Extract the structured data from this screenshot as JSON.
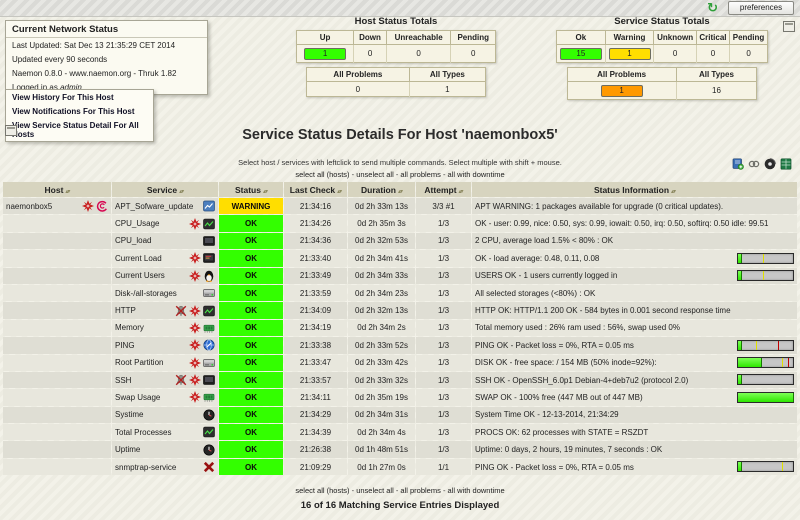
{
  "topbar": {
    "preferences_label": "preferences"
  },
  "info_panel": {
    "title": "Current Network Status",
    "last_updated": "Last Updated: Sat Dec 13 21:35:29 CET 2014",
    "update_interval": "Updated every 90 seconds",
    "product": "Naemon 0.8.0",
    "product_link": "www.naemon.org",
    "frontend": "Thruk 1.82",
    "logged_in_prefix": "Logged in as",
    "logged_in_user": "admin"
  },
  "nav_links": [
    "View History For This Host",
    "View Notifications For This Host",
    "View Service Status Detail For All Hosts"
  ],
  "host_totals": {
    "title": "Host Status Totals",
    "headers": [
      "Up",
      "Down",
      "Unreachable",
      "Pending"
    ],
    "values": [
      "1",
      "0",
      "0",
      "0"
    ],
    "summary_headers": [
      "All Problems",
      "All Types"
    ],
    "summary_values": [
      "0",
      "1"
    ]
  },
  "service_totals": {
    "title": "Service Status Totals",
    "headers": [
      "Ok",
      "Warning",
      "Unknown",
      "Critical",
      "Pending"
    ],
    "values": [
      "15",
      "1",
      "0",
      "0",
      "0"
    ],
    "summary_headers": [
      "All Problems",
      "All Types"
    ],
    "summary_values": [
      "1",
      "16"
    ]
  },
  "page": {
    "title": "Service Status Details For Host 'naemonbox5'",
    "hint": "Select host / services with leftclick to send multiple commands. Select multiple with shift + mouse.",
    "select_links": [
      "select all (hosts)",
      "unselect all",
      "all problems",
      "all with downtime"
    ],
    "footer_count": "16 of 16 Matching Service Entries Displayed"
  },
  "colors": {
    "ok": "#33ff00",
    "warning": "#ffde00",
    "problem_orange": "#ff9900",
    "debian": "#d70751",
    "starburst_red": "#c81e1e",
    "bar_green": "#2ee600"
  },
  "icon_glyphs": {
    "refresh": "circular-arrow",
    "sort": "up-down-triangles",
    "starburst": "red-burst-star",
    "debian": "pink-swirl",
    "bell-crossed": "muted-notification-bell",
    "graph": "blue-graph-doc",
    "terminal-green": "dark-terminal-green-plot",
    "screen-dark": "dark-monitor",
    "screen-red": "dark-monitor-red-text",
    "penguin": "tux-penguin",
    "drive": "disk-drive",
    "chip": "green-ram-chip",
    "globe": "blue-globe",
    "clock": "dark-clock",
    "red-x": "red-cross",
    "bookmark": "blue-book-plus",
    "link": "chain-links",
    "disc": "dark-disc",
    "excel": "green-spreadsheet"
  },
  "table": {
    "sort_glyph": "▴▾",
    "headers": [
      "Host",
      "Service",
      "Status",
      "Last Check",
      "Duration",
      "Attempt",
      "Status Information"
    ],
    "host_name": "naemonbox5",
    "host_icons": [
      "starburst",
      "debian"
    ],
    "rows": [
      {
        "service": "APT_Sofware_update",
        "icons": [
          "graph"
        ],
        "status": "WARNING",
        "state": "warning",
        "last_check": "21:34:16",
        "duration": "0d 2h 33m 13s",
        "attempt": "3/3 #1",
        "info": "APT WARNING: 1 packages available for upgrade (0 critical updates).",
        "bar": null
      },
      {
        "service": "CPU_Usage",
        "icons": [
          "starburst",
          "terminal-green"
        ],
        "status": "OK",
        "state": "ok",
        "last_check": "21:34:26",
        "duration": "0d 2h 35m 3s",
        "attempt": "1/3",
        "info": "OK - user: 0.99, nice: 0.50, sys: 0.99, iowait: 0.50, irq: 0.50, softirq: 0.50 idle: 99.51",
        "bar": null
      },
      {
        "service": "CPU_load",
        "icons": [
          "screen-dark"
        ],
        "status": "OK",
        "state": "ok",
        "last_check": "21:34:36",
        "duration": "0d 2h 32m 53s",
        "attempt": "1/3",
        "info": "2 CPU, average load 1.5% < 80% : OK",
        "bar": null
      },
      {
        "service": "Current Load",
        "icons": [
          "starburst",
          "screen-red"
        ],
        "status": "OK",
        "state": "ok",
        "last_check": "21:33:40",
        "duration": "0d 2h 34m 41s",
        "attempt": "1/3",
        "info": "OK - load average: 0.48, 0.11, 0.08",
        "bar": {
          "fill": 5,
          "yellow": 45,
          "red": null
        }
      },
      {
        "service": "Current Users",
        "icons": [
          "starburst",
          "penguin"
        ],
        "status": "OK",
        "state": "ok",
        "last_check": "21:33:49",
        "duration": "0d 2h 34m 33s",
        "attempt": "1/3",
        "info": "USERS OK - 1 users currently logged in",
        "bar": {
          "fill": 5,
          "yellow": 45,
          "red": null
        }
      },
      {
        "service": "Disk-/all-storages",
        "icons": [
          "drive"
        ],
        "status": "OK",
        "state": "ok",
        "last_check": "21:33:59",
        "duration": "0d 2h 34m 23s",
        "attempt": "1/3",
        "info": "All selected storages (<80%) : OK",
        "bar": null
      },
      {
        "service": "HTTP",
        "icons": [
          "bell-crossed",
          "starburst",
          "terminal-green"
        ],
        "status": "OK",
        "state": "ok",
        "last_check": "21:34:09",
        "duration": "0d 2h 32m 13s",
        "attempt": "1/3",
        "info": "HTTP OK: HTTP/1.1 200 OK - 584 bytes in 0.001 second response time",
        "bar": null
      },
      {
        "service": "Memory",
        "icons": [
          "starburst",
          "chip"
        ],
        "status": "OK",
        "state": "ok",
        "last_check": "21:34:19",
        "duration": "0d 2h 34m 2s",
        "attempt": "1/3",
        "info": "Total memory used : 26% ram used : 56%, swap used 0%",
        "bar": null
      },
      {
        "service": "PING",
        "icons": [
          "starburst",
          "globe"
        ],
        "status": "OK",
        "state": "ok",
        "last_check": "21:33:38",
        "duration": "0d 2h 33m 52s",
        "attempt": "1/3",
        "info": "PING OK - Packet loss = 0%, RTA = 0.05 ms",
        "bar": {
          "fill": 5,
          "yellow": 33,
          "red": 72
        }
      },
      {
        "service": "Root Partition",
        "icons": [
          "starburst",
          "drive"
        ],
        "status": "OK",
        "state": "ok",
        "last_check": "21:33:47",
        "duration": "0d 2h 33m 42s",
        "attempt": "1/3",
        "info": "DISK OK - free space: / 154 MB (50% inode=92%):",
        "bar": {
          "fill": 42,
          "yellow": 80,
          "red": 90
        }
      },
      {
        "service": "SSH",
        "icons": [
          "bell-crossed",
          "starburst",
          "screen-dark"
        ],
        "status": "OK",
        "state": "ok",
        "last_check": "21:33:57",
        "duration": "0d 2h 33m 32s",
        "attempt": "1/3",
        "info": "SSH OK - OpenSSH_6.0p1 Debian-4+deb7u2 (protocol 2.0)",
        "bar": {
          "fill": 5,
          "yellow": null,
          "red": null
        }
      },
      {
        "service": "Swap Usage",
        "icons": [
          "starburst",
          "chip"
        ],
        "status": "OK",
        "state": "ok",
        "last_check": "21:34:11",
        "duration": "0d 2h 35m 19s",
        "attempt": "1/3",
        "info": "SWAP OK - 100% free (447 MB out of 447 MB)",
        "bar": {
          "fill": 100,
          "yellow": null,
          "red": null
        }
      },
      {
        "service": "Systime",
        "icons": [
          "clock"
        ],
        "status": "OK",
        "state": "ok",
        "last_check": "21:34:29",
        "duration": "0d 2h 34m 31s",
        "attempt": "1/3",
        "info": "System Time OK - 12-13-2014, 21:34:29",
        "bar": null
      },
      {
        "service": "Total Processes",
        "icons": [
          "terminal-green"
        ],
        "status": "OK",
        "state": "ok",
        "last_check": "21:34:39",
        "duration": "0d 2h 34m 4s",
        "attempt": "1/3",
        "info": "PROCS OK: 62 processes with STATE = RSZDT",
        "bar": null
      },
      {
        "service": "Uptime",
        "icons": [
          "clock"
        ],
        "status": "OK",
        "state": "ok",
        "last_check": "21:26:38",
        "duration": "0d 1h 48m 51s",
        "attempt": "1/3",
        "info": "Uptime: 0 days, 2 hours, 19 minutes, 7 seconds : OK",
        "bar": null
      },
      {
        "service": "snmptrap-service",
        "icons": [
          "red-x"
        ],
        "status": "OK",
        "state": "ok",
        "last_check": "21:09:29",
        "duration": "0d 1h 27m 0s",
        "attempt": "1/1",
        "info": "PING OK - Packet loss = 0%, RTA = 0.05 ms",
        "bar": {
          "fill": 5,
          "yellow": 80,
          "red": null
        }
      }
    ]
  }
}
